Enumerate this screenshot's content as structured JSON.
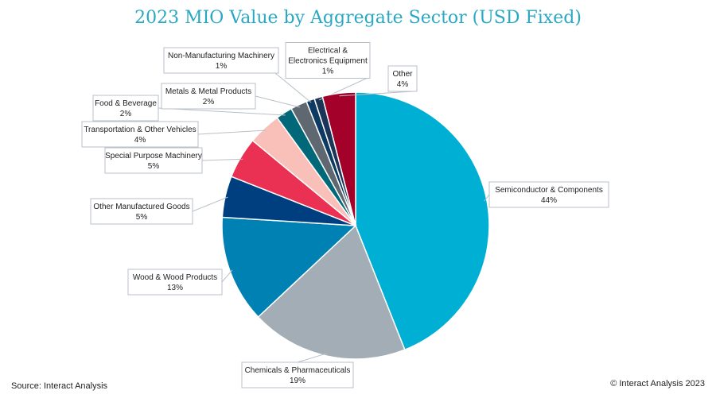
{
  "chart_data": {
    "type": "pie",
    "title": "2023 MIO Value by Aggregate Sector (USD Fixed)",
    "slices": [
      {
        "name": "Semiconductor & Components",
        "value": 44,
        "label": "44%",
        "color": "#00b0d4"
      },
      {
        "name": "Chemicals & Pharmaceuticals",
        "value": 19,
        "label": "19%",
        "color": "#a3adb5"
      },
      {
        "name": "Wood & Wood Products",
        "value": 13,
        "label": "13%",
        "color": "#0081b3"
      },
      {
        "name": "Other Manufactured Goods",
        "value": 5,
        "label": "5%",
        "color": "#003f7f"
      },
      {
        "name": "Special Purpose Machinery",
        "value": 5,
        "label": "5%",
        "color": "#ea3053"
      },
      {
        "name": "Transportation & Other Vehicles",
        "value": 4,
        "label": "4%",
        "color": "#f8c0b8"
      },
      {
        "name": "Food & Beverage",
        "value": 2,
        "label": "2%",
        "color": "#006878"
      },
      {
        "name": "Metals & Metal Products",
        "value": 2,
        "label": "2%",
        "color": "#5f6870"
      },
      {
        "name": "Non-Manufacturing Machinery",
        "value": 1,
        "label": "1%",
        "color": "#0c3a62"
      },
      {
        "name": "Electrical & Electronics Equipment",
        "value": 1,
        "label": "1%",
        "color": "#1b3558"
      },
      {
        "name": "Other",
        "value": 4,
        "label": "4%",
        "color": "#a3002a"
      }
    ]
  },
  "footer": {
    "source": "Source: Interact Analysis",
    "copyright": "© Interact Analysis 2023"
  }
}
